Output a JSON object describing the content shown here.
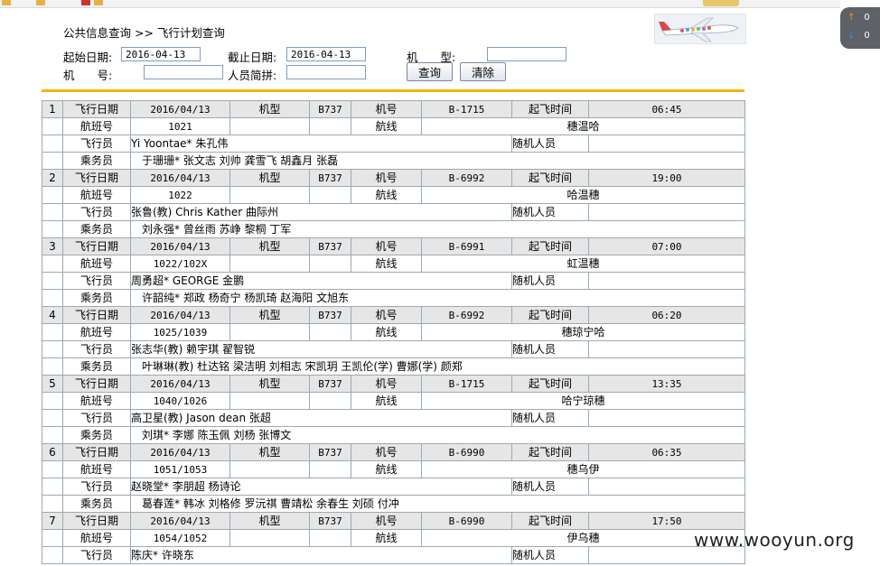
{
  "breadcrumb": "公共信息查询 >> 飞行计划查询",
  "form": {
    "start_label": "起始日期:",
    "start_value": "2016-04-13",
    "end_label": "截止日期:",
    "end_value": "2016-04-13",
    "type_label": "机　　型:",
    "type_value": "",
    "reg_label": "机　　号:",
    "reg_value": "",
    "pinyin_label": "人员简拼:",
    "pinyin_value": "",
    "query_button": "查询",
    "clear_button": "清除"
  },
  "labels": {
    "date": "飞行日期",
    "type": "机型",
    "reg": "机号",
    "dep": "起飞时间",
    "flight": "航班号",
    "route": "航线",
    "pilots": "飞行员",
    "observers": "随机人员",
    "crew": "乘务员"
  },
  "flights": [
    {
      "no": "1",
      "date": "2016/04/13",
      "type": "B737",
      "reg": "B-1715",
      "time": "06:45",
      "flight": "1021",
      "route": "穗温哈",
      "pilots": "Yi Yoontae* 朱孔伟",
      "crew": "于珊珊* 张文志 刘帅 龚雪飞 胡鑫月 张磊"
    },
    {
      "no": "2",
      "date": "2016/04/13",
      "type": "B737",
      "reg": "B-6992",
      "time": "19:00",
      "flight": "1022",
      "route": "哈温穗",
      "pilots": "张鲁(教) Chris Kather 曲际州",
      "crew": "刘永强* 曾丝雨 苏峥 黎桐 丁军"
    },
    {
      "no": "3",
      "date": "2016/04/13",
      "type": "B737",
      "reg": "B-6991",
      "time": "07:00",
      "flight": "1022/102X",
      "route": "虹温穗",
      "pilots": "周勇超* GEORGE 金鹏",
      "crew": "许韶纯* 郑政 杨奇宁 杨凯琦 赵海阳 文旭东"
    },
    {
      "no": "4",
      "date": "2016/04/13",
      "type": "B737",
      "reg": "B-6992",
      "time": "06:20",
      "flight": "1025/1039",
      "route": "穗琼宁哈",
      "pilots": "张志华(教) 赖宇琪 翟智锐",
      "crew": "叶琳琳(教) 杜达铭 梁洁明 刘相志 宋凯玥 王凯伦(学) 曹娜(学) 颜郑"
    },
    {
      "no": "5",
      "date": "2016/04/13",
      "type": "B737",
      "reg": "B-1715",
      "time": "13:35",
      "flight": "1040/1026",
      "route": "哈宁琼穗",
      "pilots": "高卫星(教) Jason dean 张超",
      "crew": "刘琪* 李娜 陈玉佩 刘杨 张博文"
    },
    {
      "no": "6",
      "date": "2016/04/13",
      "type": "B737",
      "reg": "B-6990",
      "time": "06:35",
      "flight": "1051/1053",
      "route": "穗乌伊",
      "pilots": "赵晓堂* 李朋超 杨诗论",
      "crew": "葛春莲* 韩冰 刘格修 罗沅祺 曹靖松 余春生 刘硕 付冲"
    },
    {
      "no": "7",
      "date": "2016/04/13",
      "type": "B737",
      "reg": "B-6990",
      "time": "17:50",
      "flight": "1054/1052",
      "route": "伊乌穗",
      "pilots": "陈庆* 许晓东",
      "crew": ""
    }
  ],
  "watermark": "www.wooyun.org",
  "side_panel": {
    "up_count": "0",
    "down_count": "0"
  }
}
